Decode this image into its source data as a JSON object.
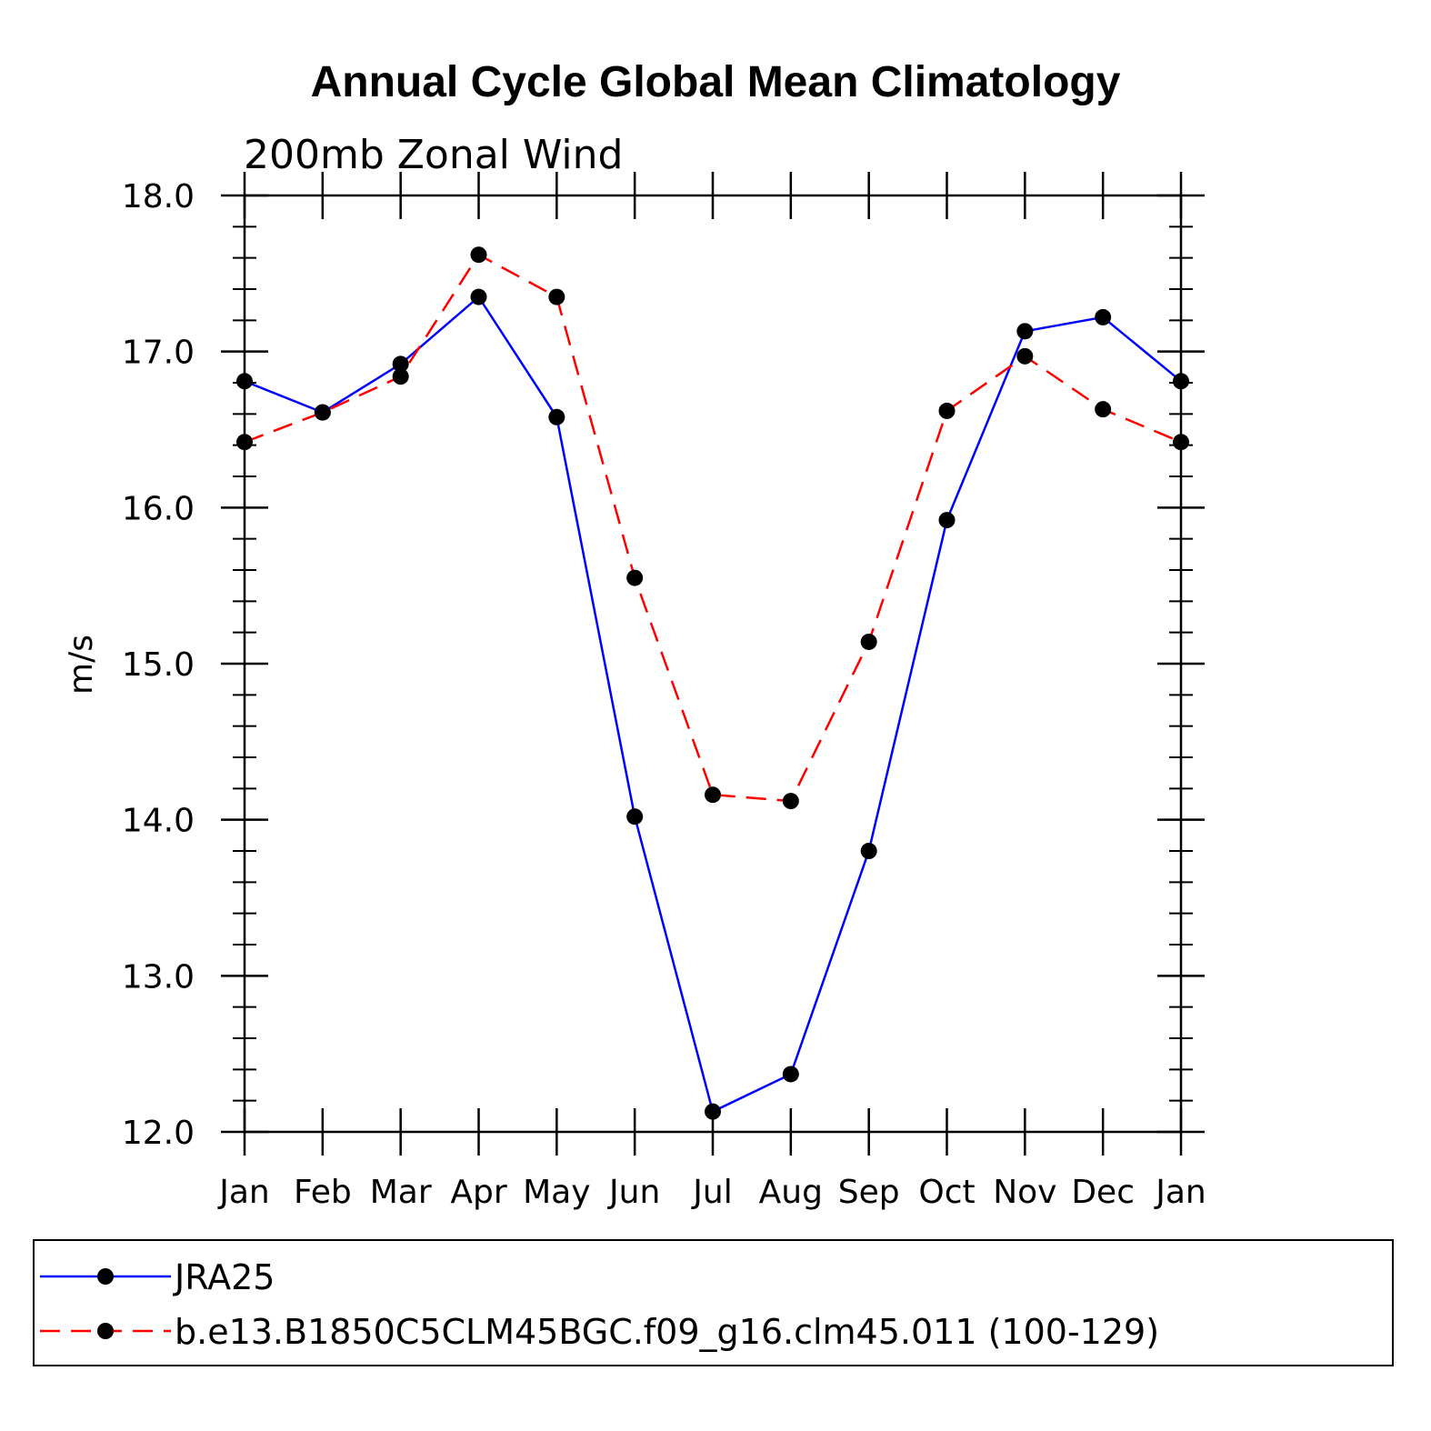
{
  "chart_data": {
    "type": "line",
    "title": "Annual Cycle Global Mean Climatology",
    "subtitle": "200mb Zonal Wind",
    "xlabel": "",
    "ylabel": "m/s",
    "categories": [
      "Jan",
      "Feb",
      "Mar",
      "Apr",
      "May",
      "Jun",
      "Jul",
      "Aug",
      "Sep",
      "Oct",
      "Nov",
      "Dec",
      "Jan"
    ],
    "ylim": [
      12.0,
      18.0
    ],
    "yticks": [
      "12.0",
      "13.0",
      "14.0",
      "15.0",
      "16.0",
      "17.0",
      "18.0"
    ],
    "grid": false,
    "legend": "bottom",
    "series": [
      {
        "name": "JRA25",
        "color": "#0000ff",
        "dash": "solid",
        "marker": "filled-circle",
        "values": [
          16.81,
          16.61,
          16.92,
          17.35,
          16.58,
          14.02,
          12.13,
          12.37,
          13.8,
          15.92,
          17.13,
          17.22,
          16.81
        ]
      },
      {
        "name": "b.e13.B1850C5CLM45BGC.f09_g16.clm45.011 (100-129)",
        "color": "#ff0000",
        "dash": "dashed",
        "marker": "filled-circle",
        "values": [
          16.42,
          16.61,
          16.84,
          17.62,
          17.35,
          15.55,
          14.16,
          14.12,
          15.14,
          16.62,
          16.97,
          16.63,
          16.42
        ]
      }
    ]
  }
}
